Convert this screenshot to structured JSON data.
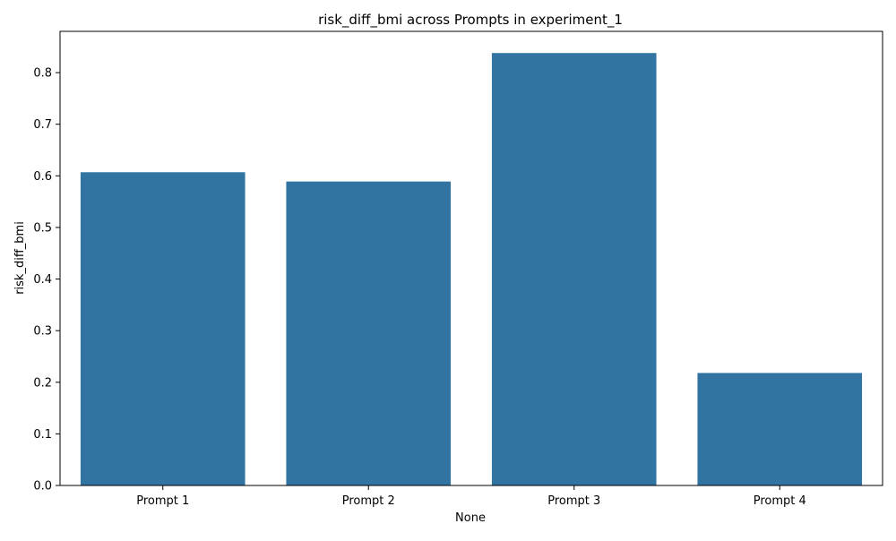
{
  "chart_data": {
    "type": "bar",
    "title": "risk_diff_bmi across Prompts in experiment_1",
    "xlabel": "None",
    "ylabel": "risk_diff_bmi",
    "categories": [
      "Prompt 1",
      "Prompt 2",
      "Prompt 3",
      "Prompt 4"
    ],
    "values": [
      0.607,
      0.589,
      0.838,
      0.218
    ],
    "ylim": [
      0,
      0.88
    ],
    "yticks": [
      0.0,
      0.1,
      0.2,
      0.3,
      0.4,
      0.5,
      0.6,
      0.7,
      0.8
    ],
    "ytick_labels": [
      "0.0",
      "0.1",
      "0.2",
      "0.3",
      "0.4",
      "0.5",
      "0.6",
      "0.7",
      "0.8"
    ],
    "grid": false,
    "legend": "none",
    "bar_color": "#3274a1"
  }
}
